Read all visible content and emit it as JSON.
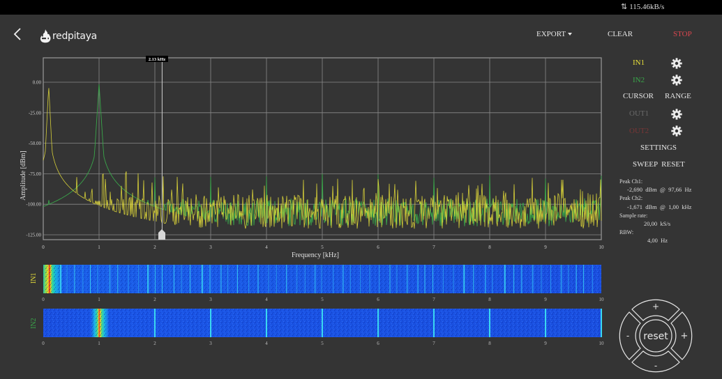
{
  "status_bar": {
    "data_rate": "115.46kB/s",
    "icon": "upload-download-arrows-icon"
  },
  "header": {
    "back_icon": "chevron-left-icon",
    "logo_text": "redpitaya",
    "buttons": {
      "export": "EXPORT",
      "clear": "CLEAR",
      "stop": "STOP"
    }
  },
  "colors": {
    "in1": "#e8e03a",
    "in2": "#3aa64a",
    "out1": "#6b6b6b",
    "out2": "#7a3636",
    "stop": "#d9464e",
    "background": "#343434",
    "grid": "#8a8a8a"
  },
  "right_panel": {
    "in1": "IN1",
    "in2": "IN2",
    "cursor": "CURSOR",
    "range": "RANGE",
    "out1": "OUT1",
    "out2": "OUT2",
    "settings": "SETTINGS",
    "sweep_reset": "SWEEP  RESET",
    "measurements": {
      "peak_ch1_label": "Peak  Ch1:",
      "peak_ch1_value": "-2,690  dBm  @  97,66  Hz",
      "peak_ch2_label": "Peak  Ch2:",
      "peak_ch2_value": "-1,671  dBm  @  1,00  kHz",
      "sample_rate_label": "Sample  rate:",
      "sample_rate_value": "20,00  kS/s",
      "rbw_label": "RBW:",
      "rbw_value": "4,00  Hz"
    }
  },
  "joystick": {
    "up": "+",
    "down": "-",
    "left": "-",
    "right": "+",
    "center": "reset"
  },
  "cursor": {
    "label": "2.13  kHz",
    "frequency_khz": 2.13
  },
  "chart_data": [
    {
      "type": "line",
      "title": "",
      "xlabel": "Frequency   [kHz]",
      "ylabel": "Amplitude  [dBm]",
      "xlim": [
        0,
        10
      ],
      "ylim": [
        -125,
        0
      ],
      "x_ticks": [
        "0",
        "1",
        "2",
        "3",
        "4",
        "5",
        "6",
        "7",
        "8",
        "9",
        "10"
      ],
      "y_ticks": [
        "0.00",
        "-25.00",
        "-50.00",
        "-75.00",
        "-100.00",
        "-125.00"
      ],
      "grid": true,
      "series": [
        {
          "name": "IN1",
          "color": "#e8e03a",
          "peak": {
            "x_khz": 0.09766,
            "y_dbm": -2.69
          },
          "harmonics_khz": [
            0.2,
            0.3,
            0.6,
            0.75,
            0.87,
            1.07,
            1.12,
            1.2,
            1.4,
            1.48,
            1.6,
            1.7,
            1.8,
            1.95,
            2.15,
            2.3,
            2.4
          ],
          "noise_floor_dbm": [
            -120,
            -95
          ]
        },
        {
          "name": "IN2",
          "color": "#3aa64a",
          "peak": {
            "x_khz": 1.0,
            "y_dbm": -1.671
          },
          "spurs_khz": [
            2,
            3,
            4,
            5,
            6,
            7,
            8,
            9,
            10
          ],
          "spur_level_dbm": -75,
          "noise_floor_dbm": [
            -118,
            -98
          ]
        }
      ]
    },
    {
      "type": "heatmap",
      "title": "IN1 waterfall",
      "ylabel": "IN1",
      "x_ticks": [
        "0",
        "1",
        "2",
        "3",
        "4",
        "5",
        "6",
        "7",
        "8",
        "9",
        "10"
      ],
      "hot_band_khz": 0.1
    },
    {
      "type": "heatmap",
      "title": "IN2 waterfall",
      "ylabel": "IN2",
      "x_ticks": [
        "0",
        "1",
        "2",
        "3",
        "4",
        "5",
        "6",
        "7",
        "8",
        "9",
        "10"
      ],
      "hot_band_khz": 1.0,
      "lines_khz": [
        2,
        3,
        4,
        5,
        6,
        7,
        8,
        9,
        10
      ]
    }
  ]
}
